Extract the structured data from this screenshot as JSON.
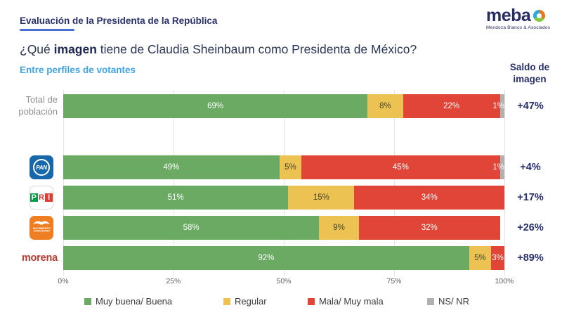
{
  "header": {
    "kicker": "Evaluación de la Presidenta de la República",
    "logo_word": "meba",
    "logo_sub": "Mendoza Blanco & Asociados"
  },
  "title": {
    "pre": "¿Qué ",
    "bold": "imagen",
    "post": " tiene de Claudia Sheinbaum como Presidenta de México?"
  },
  "subtitle": "Entre perfiles de votantes",
  "saldo_header": {
    "line1": "Saldo de",
    "line2": "imagen"
  },
  "colors": {
    "buena": "#6aaa63",
    "regular": "#ecc352",
    "mala": "#e04538",
    "nsnr": "#b1b1b1",
    "navy": "#28306b",
    "subtitle_blue": "#3fa3e3",
    "morena_red": "#b93a30",
    "pan_blue": "#1767ab",
    "mc_orange": "#ef7e22"
  },
  "rows": [
    {
      "id": "total",
      "label": "Total de población",
      "label_type": "text",
      "segments": [
        {
          "key": "buena",
          "value": 69,
          "text": "69%"
        },
        {
          "key": "regular",
          "value": 8,
          "text": "8%"
        },
        {
          "key": "mala",
          "value": 22,
          "text": "22%"
        },
        {
          "key": "nsnr",
          "value": 1,
          "text": "1%",
          "clipped": true
        }
      ],
      "saldo": "+47%"
    },
    {
      "id": "pan",
      "label": "PAN",
      "label_type": "logo-pan",
      "logo_text": "PAN",
      "segments": [
        {
          "key": "buena",
          "value": 49,
          "text": "49%"
        },
        {
          "key": "regular",
          "value": 5,
          "text": "5%"
        },
        {
          "key": "mala",
          "value": 45,
          "text": "45%"
        },
        {
          "key": "nsnr",
          "value": 1,
          "text": "1%",
          "clipped": true
        }
      ],
      "saldo": "+4%"
    },
    {
      "id": "pri",
      "label": "PRI",
      "label_type": "logo-pri",
      "logo_text": "PRI",
      "segments": [
        {
          "key": "buena",
          "value": 51,
          "text": "51%"
        },
        {
          "key": "regular",
          "value": 15,
          "text": "15%"
        },
        {
          "key": "mala",
          "value": 34,
          "text": "34%"
        }
      ],
      "saldo": "+17%"
    },
    {
      "id": "mc",
      "label": "Movimiento Ciudadano",
      "label_type": "logo-mc",
      "logo_text_line1": "MOVIMIENTO",
      "logo_text_line2": "CIUDADANO",
      "segments": [
        {
          "key": "buena",
          "value": 58,
          "text": "58%"
        },
        {
          "key": "regular",
          "value": 9,
          "text": "9%"
        },
        {
          "key": "mala",
          "value": 32,
          "text": "32%"
        }
      ],
      "saldo": "+26%"
    },
    {
      "id": "morena",
      "label": "morena",
      "label_type": "text-morena",
      "segments": [
        {
          "key": "buena",
          "value": 92,
          "text": "92%"
        },
        {
          "key": "regular",
          "value": 5,
          "text": "5%"
        },
        {
          "key": "mala",
          "value": 3,
          "text": "3%"
        }
      ],
      "saldo": "+89%"
    }
  ],
  "axis": {
    "x_ticks": [
      "0%",
      "25%",
      "50%",
      "75%",
      "100%"
    ],
    "xlim": [
      0,
      100
    ]
  },
  "legend": [
    {
      "key": "buena",
      "label": "Muy buena/ Buena"
    },
    {
      "key": "regular",
      "label": "Regular"
    },
    {
      "key": "mala",
      "label": "Mala/ Muy mala"
    },
    {
      "key": "nsnr",
      "label": "NS/ NR"
    }
  ],
  "chart_data": {
    "type": "bar",
    "orientation": "horizontal-stacked",
    "title": "¿Qué imagen tiene de Claudia Sheinbaum como Presidenta de México?",
    "subtitle": "Entre perfiles de votantes",
    "categories": [
      "Total de población",
      "PAN",
      "PRI",
      "Movimiento Ciudadano",
      "morena"
    ],
    "series": [
      {
        "name": "Muy buena/ Buena",
        "color": "#6aaa63",
        "values": [
          69,
          49,
          51,
          58,
          92
        ]
      },
      {
        "name": "Regular",
        "color": "#ecc352",
        "values": [
          8,
          5,
          15,
          9,
          5
        ]
      },
      {
        "name": "Mala/ Muy mala",
        "color": "#e04538",
        "values": [
          22,
          45,
          34,
          32,
          3
        ]
      },
      {
        "name": "NS/ NR",
        "color": "#b1b1b1",
        "values": [
          1,
          1,
          0,
          0,
          0
        ]
      }
    ],
    "saldo_column": {
      "header": "Saldo de imagen",
      "values": [
        "+47%",
        "+4%",
        "+17%",
        "+26%",
        "+89%"
      ]
    },
    "xlabel": "",
    "ylabel": "",
    "xlim": [
      0,
      100
    ],
    "x_ticks": [
      "0%",
      "25%",
      "50%",
      "75%",
      "100%"
    ],
    "grid": "vertical",
    "legend_position": "bottom"
  }
}
